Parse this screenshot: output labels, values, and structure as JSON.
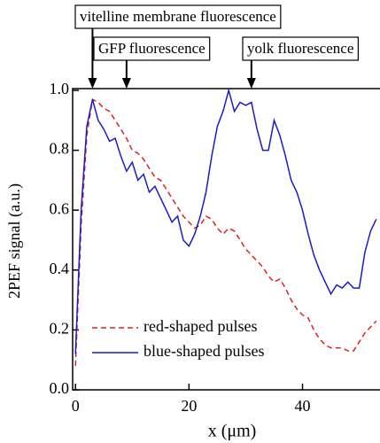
{
  "chart_data": {
    "type": "line",
    "xlabel": "x (μm)",
    "ylabel": "2PEF signal (a.u.)",
    "x": [
      0,
      1,
      2,
      3,
      4,
      5,
      6,
      7,
      8,
      9,
      10,
      11,
      12,
      13,
      14,
      15,
      16,
      17,
      18,
      19,
      20,
      21,
      22,
      23,
      24,
      25,
      26,
      27,
      28,
      29,
      30,
      31,
      32,
      33,
      34,
      35,
      36,
      37,
      38,
      39,
      40,
      41,
      42,
      43,
      44,
      45,
      46,
      47,
      48,
      49,
      50,
      51,
      52,
      53
    ],
    "series": [
      {
        "name": "red-shaped pulses",
        "color": "#e02020",
        "dash": true,
        "values": [
          0.08,
          0.55,
          0.85,
          0.97,
          0.96,
          0.94,
          0.93,
          0.9,
          0.87,
          0.84,
          0.8,
          0.79,
          0.77,
          0.74,
          0.71,
          0.7,
          0.67,
          0.64,
          0.61,
          0.58,
          0.56,
          0.54,
          0.55,
          0.58,
          0.57,
          0.54,
          0.52,
          0.54,
          0.53,
          0.5,
          0.47,
          0.45,
          0.43,
          0.41,
          0.38,
          0.36,
          0.37,
          0.34,
          0.3,
          0.27,
          0.25,
          0.24,
          0.2,
          0.17,
          0.15,
          0.14,
          0.14,
          0.14,
          0.13,
          0.13,
          0.16,
          0.19,
          0.21,
          0.23
        ]
      },
      {
        "name": "blue-shaped pulses",
        "color": "#1a1acc",
        "dash": false,
        "values": [
          0.12,
          0.6,
          0.88,
          0.97,
          0.9,
          0.87,
          0.83,
          0.84,
          0.78,
          0.73,
          0.76,
          0.7,
          0.72,
          0.66,
          0.68,
          0.64,
          0.6,
          0.56,
          0.58,
          0.5,
          0.48,
          0.52,
          0.58,
          0.66,
          0.78,
          0.88,
          0.93,
          1.0,
          0.93,
          0.96,
          0.95,
          0.96,
          0.87,
          0.8,
          0.8,
          0.9,
          0.85,
          0.78,
          0.7,
          0.66,
          0.6,
          0.52,
          0.45,
          0.4,
          0.36,
          0.32,
          0.35,
          0.34,
          0.36,
          0.34,
          0.34,
          0.46,
          0.53,
          0.57
        ]
      }
    ],
    "annotations": [
      {
        "text": "vitelline membrane fluorescence",
        "x": 3
      },
      {
        "text": "GFP fluorescence",
        "x": 9
      },
      {
        "text": "yolk fluorescence",
        "x": 31
      }
    ],
    "xlim": [
      -0.5,
      53.5
    ],
    "xticks": [
      0,
      20,
      40
    ],
    "ylim": [
      0,
      1
    ],
    "yticks": [
      {
        "value": 0,
        "label": "0.0"
      },
      0.2,
      0.4,
      0.6,
      0.8,
      {
        "value": 1,
        "label": "1.0"
      }
    ],
    "legend": "lower left"
  }
}
